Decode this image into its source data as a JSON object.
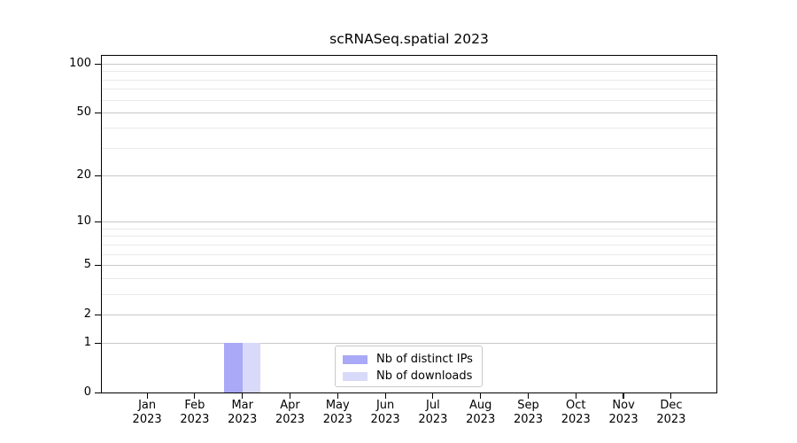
{
  "chart_data": {
    "type": "bar",
    "title": "scRNASeq.spatial 2023",
    "categories": [
      {
        "month": "Jan",
        "year": "2023"
      },
      {
        "month": "Feb",
        "year": "2023"
      },
      {
        "month": "Mar",
        "year": "2023"
      },
      {
        "month": "Apr",
        "year": "2023"
      },
      {
        "month": "May",
        "year": "2023"
      },
      {
        "month": "Jun",
        "year": "2023"
      },
      {
        "month": "Jul",
        "year": "2023"
      },
      {
        "month": "Aug",
        "year": "2023"
      },
      {
        "month": "Sep",
        "year": "2023"
      },
      {
        "month": "Oct",
        "year": "2023"
      },
      {
        "month": "Nov",
        "year": "2023"
      },
      {
        "month": "Dec",
        "year": "2023"
      }
    ],
    "series": [
      {
        "name": "Nb of distinct IPs",
        "color": "#a9a9f7",
        "values": [
          0,
          0,
          1,
          0,
          0,
          0,
          0,
          0,
          0,
          0,
          0,
          0
        ]
      },
      {
        "name": "Nb of downloads",
        "color": "#d9d9f9",
        "values": [
          0,
          0,
          1,
          0,
          0,
          0,
          0,
          0,
          0,
          0,
          0,
          0
        ]
      }
    ],
    "yscale": "log(1+x)",
    "ylim": [
      0,
      112
    ],
    "yticks": [
      0,
      1,
      2,
      5,
      10,
      20,
      50,
      100
    ],
    "y_minor_gridlines": [
      3,
      4,
      6,
      7,
      8,
      9,
      30,
      40,
      60,
      70,
      80,
      90
    ],
    "legend": {
      "position": "lower center",
      "entries": [
        "Nb of distinct IPs",
        "Nb of downloads"
      ]
    },
    "grid": "on",
    "colors": {
      "grid_major": "#c8c8c8",
      "grid_minor": "#e9e9e9",
      "axis": "#000000",
      "background": "#ffffff"
    }
  }
}
